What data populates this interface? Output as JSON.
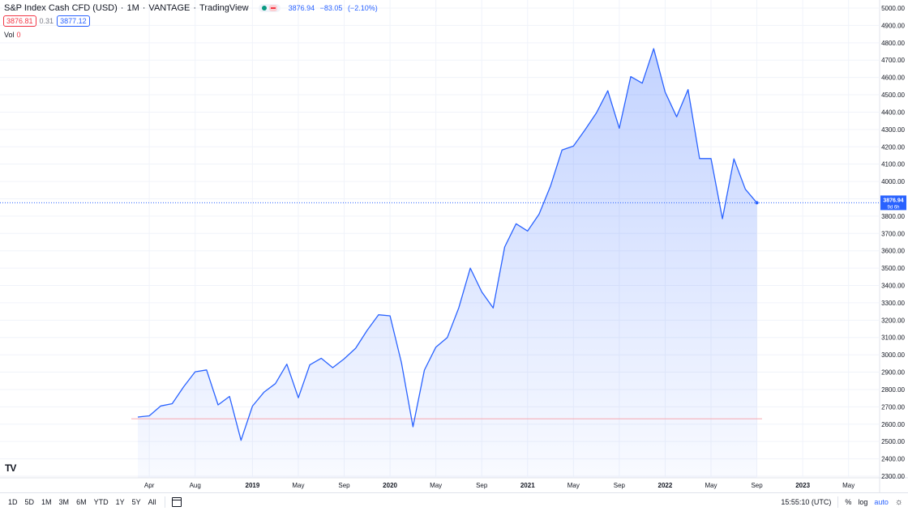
{
  "header": {
    "symbol": "S&P Index Cash CFD (USD)",
    "interval": "1M",
    "exchange": "VANTAGE",
    "source": "TradingView",
    "last": "3876.94",
    "change": "−83.05",
    "change_pct": "(−2.10%)"
  },
  "bidask": {
    "bid": "3876.81",
    "spread": "0.31",
    "ask": "3877.12"
  },
  "volume": {
    "label": "Vol",
    "value": "0"
  },
  "price_label": {
    "value": "3876.94",
    "countdown": "9d 6h"
  },
  "bottom_bar": {
    "ranges": [
      "1D",
      "5D",
      "1M",
      "3M",
      "6M",
      "YTD",
      "1Y",
      "5Y",
      "All"
    ],
    "time": "15:55:10 (UTC)",
    "percent": "%",
    "log": "log",
    "auto": "auto"
  },
  "logo_text": "TV",
  "colors": {
    "line": "#2962ff",
    "fill": "#2962ff",
    "grid": "#f0f3fa",
    "down": "#f23645"
  },
  "chart_data": {
    "type": "area",
    "title": "S&P Index Cash CFD (USD)",
    "x_ticks": [
      "Apr",
      "Aug",
      "2019",
      "May",
      "Sep",
      "2020",
      "May",
      "Sep",
      "2021",
      "May",
      "Sep",
      "2022",
      "May",
      "Sep",
      "2023",
      "May"
    ],
    "y_ticks": [
      "2300.00",
      "2400.00",
      "2500.00",
      "2600.00",
      "2700.00",
      "2800.00",
      "2900.00",
      "3000.00",
      "3100.00",
      "3200.00",
      "3300.00",
      "3400.00",
      "3500.00",
      "3600.00",
      "3700.00",
      "3800.00",
      "3900.00",
      "4000.00",
      "4100.00",
      "4200.00",
      "4300.00",
      "4400.00",
      "4500.00",
      "4600.00",
      "4700.00",
      "4800.00",
      "4900.00",
      "5000.00"
    ],
    "ylim": [
      2300,
      5000
    ],
    "x_start_month": "2018-03",
    "x": [
      "2018-03",
      "2018-04",
      "2018-05",
      "2018-06",
      "2018-07",
      "2018-08",
      "2018-09",
      "2018-10",
      "2018-11",
      "2018-12",
      "2019-01",
      "2019-02",
      "2019-03",
      "2019-04",
      "2019-05",
      "2019-06",
      "2019-07",
      "2019-08",
      "2019-09",
      "2019-10",
      "2019-11",
      "2019-12",
      "2020-01",
      "2020-02",
      "2020-03",
      "2020-04",
      "2020-05",
      "2020-06",
      "2020-07",
      "2020-08",
      "2020-09",
      "2020-10",
      "2020-11",
      "2020-12",
      "2021-01",
      "2021-02",
      "2021-03",
      "2021-04",
      "2021-05",
      "2021-06",
      "2021-07",
      "2021-08",
      "2021-09",
      "2021-10",
      "2021-11",
      "2021-12",
      "2022-01",
      "2022-02",
      "2022-03",
      "2022-04",
      "2022-05",
      "2022-06",
      "2022-07",
      "2022-08",
      "2022-09"
    ],
    "series": [
      {
        "values": [
          2641,
          2648,
          2705,
          2718,
          2816,
          2902,
          2913,
          2711,
          2760,
          2507,
          2704,
          2784,
          2834,
          2946,
          2752,
          2942,
          2980,
          2926,
          2977,
          3038,
          3141,
          3231,
          3225,
          2954,
          2585,
          2912,
          3044,
          3100,
          3271,
          3500,
          3363,
          3270,
          3622,
          3756,
          3714,
          3811,
          3973,
          4181,
          4204,
          4297,
          4395,
          4523,
          4307,
          4605,
          4567,
          4766,
          4516,
          4373,
          4530,
          4132,
          4132,
          3785,
          4130,
          3955,
          3877
        ]
      }
    ],
    "reference_line": 2631,
    "last_price": 3876.94,
    "grid": true
  }
}
